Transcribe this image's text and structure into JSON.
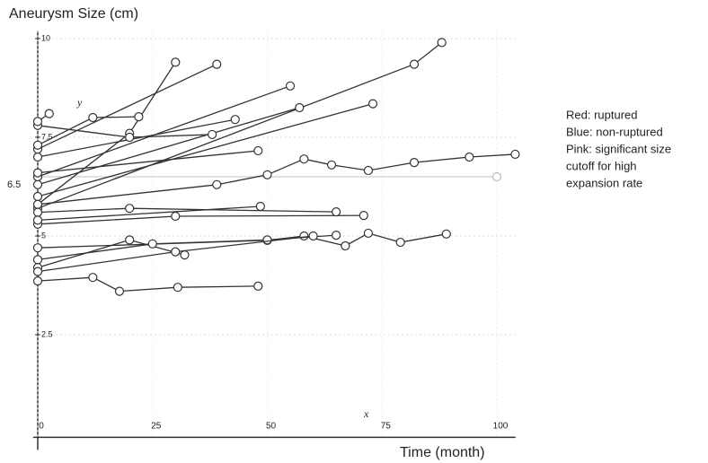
{
  "chart_data": {
    "type": "line",
    "title": "Aneurysm Size (cm)",
    "x_label": "Time (month)",
    "xlim": [
      -1,
      107
    ],
    "ylim": [
      -0.1,
      10.2
    ],
    "xticks": [
      0,
      25,
      50,
      75,
      100
    ],
    "yticks": [
      2.5,
      5,
      7.5,
      10
    ],
    "grid": true,
    "annotations": [
      "6.5",
      "y",
      "x"
    ],
    "legend_text": [
      "Red: ruptured",
      "Blue: non-ruptured",
      "Pink: significant size",
      "cutoff for high",
      "expansion rate"
    ],
    "series": [
      {
        "color": "#cfcfcf",
        "x": [
          0,
          100
        ],
        "values": [
          6.5,
          6.5
        ]
      },
      {
        "color": "#333333",
        "x": [
          0,
          82,
          88
        ],
        "values": [
          5.7,
          9.35,
          9.9
        ]
      },
      {
        "color": "#333333",
        "x": [
          0,
          20,
          30
        ],
        "values": [
          5.8,
          7.6,
          9.4
        ]
      },
      {
        "color": "#333333",
        "x": [
          0,
          39
        ],
        "values": [
          7.2,
          9.35
        ]
      },
      {
        "color": "#333333",
        "x": [
          0,
          55
        ],
        "values": [
          6.5,
          8.8
        ]
      },
      {
        "color": "#333333",
        "x": [
          0,
          57
        ],
        "values": [
          6.3,
          8.25
        ]
      },
      {
        "color": "#333333",
        "x": [
          0,
          73
        ],
        "values": [
          6.0,
          8.35
        ]
      },
      {
        "color": "#333333",
        "x": [
          0,
          43
        ],
        "values": [
          7.0,
          7.95
        ]
      },
      {
        "color": "#333333",
        "x": [
          0,
          39,
          50,
          58,
          64,
          72,
          82,
          94,
          104
        ],
        "values": [
          5.8,
          6.3,
          6.55,
          6.95,
          6.8,
          6.66,
          6.86,
          7.0,
          7.07
        ]
      },
      {
        "color": "#333333",
        "x": [
          0,
          50,
          58,
          67,
          72,
          79,
          89
        ],
        "values": [
          4.7,
          4.89,
          5.0,
          4.75,
          5.07,
          4.84,
          5.05
        ]
      },
      {
        "color": "#333333",
        "x": [
          0,
          12,
          17.8,
          30.5,
          48
        ],
        "values": [
          3.86,
          3.95,
          3.6,
          3.7,
          3.73
        ]
      },
      {
        "color": "#333333",
        "x": [
          0,
          30,
          71
        ],
        "values": [
          5.3,
          5.5,
          5.52
        ]
      },
      {
        "color": "#333333",
        "x": [
          0,
          20,
          65
        ],
        "values": [
          5.6,
          5.7,
          5.61
        ]
      },
      {
        "color": "#333333",
        "x": [
          0,
          48
        ],
        "values": [
          6.6,
          7.16
        ]
      },
      {
        "color": "#333333",
        "x": [
          0,
          20,
          38
        ],
        "values": [
          7.8,
          7.5,
          7.57
        ]
      },
      {
        "color": "#333333",
        "x": [
          0,
          20,
          32
        ],
        "values": [
          4.2,
          4.9,
          4.52
        ]
      },
      {
        "color": "#333333",
        "x": [
          0,
          25,
          50,
          65
        ],
        "values": [
          4.4,
          4.8,
          4.9,
          5.02
        ]
      },
      {
        "color": "#333333",
        "x": [
          0,
          12,
          22
        ],
        "values": [
          7.3,
          8.0,
          8.02
        ]
      },
      {
        "color": "#333333",
        "x": [
          0,
          48.5
        ],
        "values": [
          5.4,
          5.75
        ]
      },
      {
        "color": "#333333",
        "x": [
          0,
          30,
          60
        ],
        "values": [
          4.1,
          4.6,
          5.0
        ]
      },
      {
        "color": "#333333",
        "x": [
          0,
          2.5
        ],
        "values": [
          7.9,
          8.1
        ]
      }
    ]
  }
}
